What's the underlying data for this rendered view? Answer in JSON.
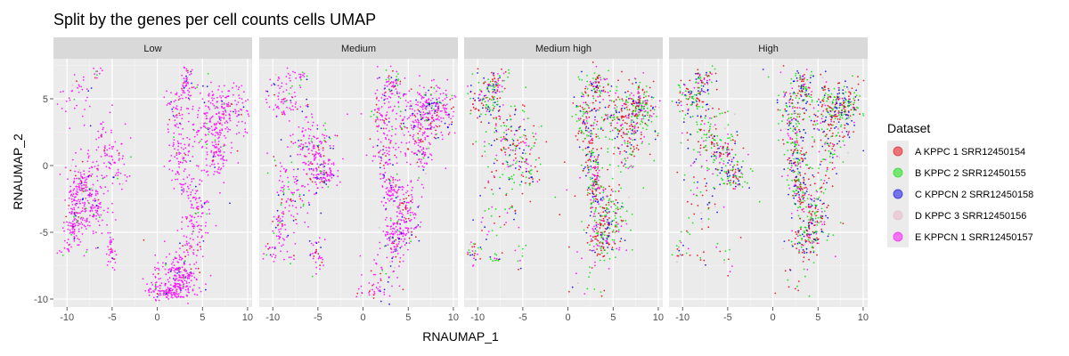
{
  "chart_data": {
    "type": "scatter",
    "title": "Split by the genes per cell counts cells UMAP",
    "xlabel": "RNAUMAP_1",
    "ylabel": "RNAUMAP_2",
    "xlim": [
      -11.5,
      10.5
    ],
    "ylim": [
      -10.6,
      8.0
    ],
    "xticks": [
      -10,
      -5,
      0,
      5,
      10
    ],
    "yticks": [
      -10,
      -5,
      0,
      5
    ],
    "xtick_labels": [
      "-10",
      "-5",
      "0",
      "5",
      "10"
    ],
    "ytick_labels": [
      "-10",
      "-5",
      "0",
      "5"
    ],
    "grid": true,
    "legend_position": "right",
    "legend_title": "Dataset",
    "panels": [
      "Low",
      "Medium",
      "Medium high",
      "High"
    ],
    "series": [
      {
        "name": "A KPPC 1 SRR12450154",
        "color": "#e8000b",
        "composition": [
          0.05,
          0.09,
          0.3,
          0.3
        ]
      },
      {
        "name": "B KPPC 2 SRR12450155",
        "color": "#00e000",
        "composition": [
          0.03,
          0.06,
          0.32,
          0.32
        ]
      },
      {
        "name": "C KPPCN 2 SRR12450158",
        "color": "#0000e8",
        "composition": [
          0.04,
          0.09,
          0.14,
          0.2
        ]
      },
      {
        "name": "D KPPC 3 SRR12450156",
        "color": "#e8b4c4",
        "composition": [
          0.02,
          0.03,
          0.04,
          0.04
        ]
      },
      {
        "name": "E KPPCN 1 SRR12450157",
        "color": "#ff00ff",
        "composition": [
          0.86,
          0.73,
          0.2,
          0.14
        ]
      }
    ],
    "clusters": [
      {
        "cx": 6.5,
        "cy": 3.8,
        "sx": 1.8,
        "sy": 1.2,
        "w": [
          0.7,
          1.0,
          1.0,
          1.0
        ]
      },
      {
        "cx": 8.0,
        "cy": 4.5,
        "sx": 1.0,
        "sy": 0.8,
        "w": [
          0.4,
          0.6,
          0.6,
          0.6
        ]
      },
      {
        "cx": 6.5,
        "cy": 1.0,
        "sx": 0.5,
        "sy": 1.0,
        "w": [
          0.3,
          0.2,
          0.2,
          0.2
        ]
      },
      {
        "cx": 3.2,
        "cy": 6.0,
        "sx": 0.5,
        "sy": 0.6,
        "w": [
          0.3,
          0.3,
          0.3,
          0.35
        ]
      },
      {
        "cx": 2.0,
        "cy": 3.5,
        "sx": 0.6,
        "sy": 1.5,
        "w": [
          0.35,
          0.3,
          0.5,
          0.5
        ]
      },
      {
        "cx": 2.5,
        "cy": 0.5,
        "sx": 0.6,
        "sy": 1.0,
        "w": [
          0.25,
          0.3,
          0.4,
          0.4
        ]
      },
      {
        "cx": 4.5,
        "cy": -3.8,
        "sx": 1.0,
        "sy": 1.2,
        "w": [
          0.3,
          0.6,
          0.7,
          0.7
        ]
      },
      {
        "cx": 3.5,
        "cy": -5.5,
        "sx": 0.7,
        "sy": 0.8,
        "w": [
          0.2,
          0.4,
          0.4,
          0.4
        ]
      },
      {
        "cx": 3.0,
        "cy": -1.8,
        "sx": 0.5,
        "sy": 0.7,
        "w": [
          0.1,
          0.3,
          0.4,
          0.4
        ]
      },
      {
        "cx": 2.5,
        "cy": -8.2,
        "sx": 1.3,
        "sy": 0.9,
        "w": [
          1.3,
          0.15,
          0.05,
          0.05
        ]
      },
      {
        "cx": 1.2,
        "cy": -9.4,
        "sx": 1.0,
        "sy": 0.3,
        "w": [
          0.6,
          0.15,
          0.02,
          0.02
        ]
      },
      {
        "cx": 4.5,
        "cy": -3.0,
        "sx": 0.7,
        "sy": 1.8,
        "w": [
          0.25,
          0.1,
          0.1,
          0.1
        ]
      },
      {
        "cx": 6.0,
        "cy": 2.2,
        "sx": 1.2,
        "sy": 1.6,
        "w": [
          0.5,
          0.3,
          0.2,
          0.2
        ]
      },
      {
        "cx": -8.5,
        "cy": -1.6,
        "sx": 0.8,
        "sy": 0.9,
        "w": [
          0.7,
          0.25,
          0.1,
          0.08
        ]
      },
      {
        "cx": -7.3,
        "cy": -3.2,
        "sx": 1.0,
        "sy": 1.0,
        "w": [
          0.7,
          0.3,
          0.1,
          0.08
        ]
      },
      {
        "cx": -9.3,
        "cy": -4.5,
        "sx": 0.5,
        "sy": 0.9,
        "w": [
          0.5,
          0.2,
          0.05,
          0.05
        ]
      },
      {
        "cx": -5.2,
        "cy": -6.5,
        "sx": 0.35,
        "sy": 0.8,
        "w": [
          0.2,
          0.15,
          0.05,
          0.05
        ]
      },
      {
        "cx": -5.2,
        "cy": 0.5,
        "sx": 1.0,
        "sy": 1.1,
        "w": [
          0.3,
          0.6,
          0.3,
          0.35
        ]
      },
      {
        "cx": -6.8,
        "cy": 2.0,
        "sx": 1.3,
        "sy": 1.3,
        "w": [
          0.25,
          0.45,
          0.55,
          0.6
        ]
      },
      {
        "cx": -9.0,
        "cy": 5.0,
        "sx": 1.0,
        "sy": 0.8,
        "w": [
          0.15,
          0.3,
          0.5,
          0.5
        ]
      },
      {
        "cx": -4.2,
        "cy": -0.8,
        "sx": 0.8,
        "sy": 0.5,
        "w": [
          0.1,
          0.3,
          0.1,
          0.25
        ]
      },
      {
        "cx": -8.0,
        "cy": 6.3,
        "sx": 0.6,
        "sy": 0.4,
        "w": [
          0.05,
          0.1,
          0.2,
          0.2
        ]
      },
      {
        "cx": -6.8,
        "cy": 6.8,
        "sx": 0.3,
        "sy": 0.3,
        "w": [
          0.08,
          0.05,
          0.05,
          0.05
        ]
      },
      {
        "cx": -10.3,
        "cy": -6.4,
        "sx": 0.5,
        "sy": 0.4,
        "w": [
          0.04,
          0.1,
          0.12,
          0.1
        ]
      },
      {
        "cx": -8.0,
        "cy": -7.0,
        "sx": 0.3,
        "sy": 0.3,
        "w": [
          0.03,
          0.05,
          0.05,
          0.05
        ]
      },
      {
        "cx": 0.0,
        "cy": 0.0,
        "sx": 7.0,
        "sy": 5.5,
        "w": [
          0.12,
          0.15,
          0.08,
          0.08
        ]
      }
    ],
    "points_per_panel": 1500
  }
}
